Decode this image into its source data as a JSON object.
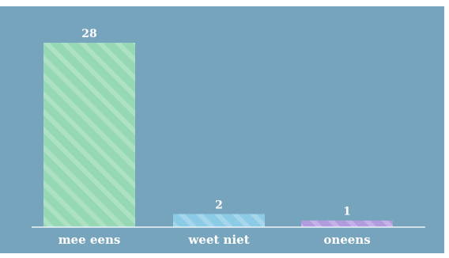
{
  "chart_data": {
    "type": "bar",
    "categories": [
      "mee eens",
      "weet niet",
      "oneens"
    ],
    "values": [
      28,
      2,
      1
    ],
    "data_labels": [
      "28",
      "2",
      "1"
    ],
    "title": "",
    "xlabel": "",
    "ylabel": "",
    "ylim": [
      0,
      28
    ],
    "grid": false,
    "legend": "none",
    "colors": {
      "background": "#77a4bd",
      "bars": [
        "#96d8b4",
        "#8ccbe5",
        "#b39be0"
      ],
      "stripe": "#ffffff",
      "baseline": "#eef4f8",
      "label": "#ffffff"
    }
  }
}
